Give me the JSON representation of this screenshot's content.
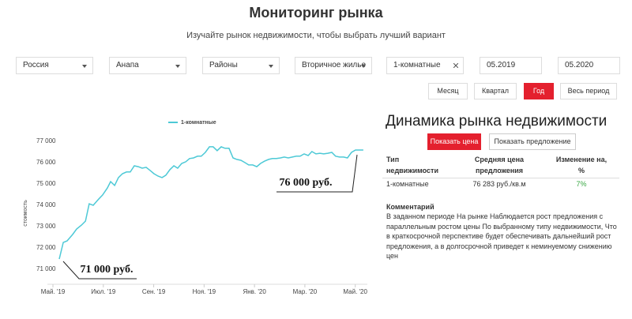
{
  "header": {
    "title": "Мониторинг рынка",
    "subtitle": "Изучайте рынок недвижимости, чтобы выбрать лучший вариант"
  },
  "filters": [
    "Россия",
    "Анапа",
    "Районы",
    "Вторичное жилье",
    "1-комнатные",
    "05.2019",
    "05.2020"
  ],
  "periods": [
    "Месяц",
    "Квартал",
    "Год",
    "Весь период"
  ],
  "chart_data": {
    "type": "line",
    "y_label": "стоимость",
    "x": [
      0.25,
      0.41,
      0.56,
      0.78,
      0.94,
      1.13,
      1.29,
      1.44,
      1.6,
      1.79,
      1.97,
      2.16,
      2.29,
      2.45,
      2.6,
      2.76,
      2.92,
      3.07,
      3.23,
      3.39,
      3.54,
      3.7,
      3.86,
      4.01,
      4.17,
      4.33,
      4.48,
      4.64,
      4.8,
      4.95,
      5.11,
      5.27,
      5.42,
      5.58,
      5.74,
      5.89,
      6.05,
      6.21,
      6.36,
      6.52,
      6.68,
      6.83,
      6.99,
      7.15,
      7.3,
      7.46,
      7.62,
      7.77,
      7.93,
      8.09,
      8.24,
      8.4,
      8.56,
      8.71,
      8.87,
      9.03,
      9.18,
      9.34,
      9.5,
      9.66,
      9.81,
      9.97,
      10.13,
      10.28,
      10.44,
      10.6,
      10.75,
      10.91,
      11.07,
      11.22,
      11.38,
      11.54,
      11.69,
      11.85,
      12.01,
      12.16,
      12.32
    ],
    "series": [
      {
        "name": "1-комнатные",
        "color": "#4dc9d6",
        "values": [
          71480,
          72260,
          72330,
          72630,
          72890,
          73070,
          73260,
          74070,
          74000,
          74260,
          74480,
          74810,
          75110,
          74930,
          75300,
          75480,
          75560,
          75560,
          75850,
          75810,
          75740,
          75780,
          75630,
          75480,
          75370,
          75300,
          75410,
          75670,
          75850,
          75740,
          75960,
          76040,
          76190,
          76220,
          76300,
          76300,
          76480,
          76740,
          76740,
          76560,
          76740,
          76670,
          76670,
          76220,
          76150,
          76110,
          76000,
          75890,
          75890,
          75810,
          75960,
          76070,
          76150,
          76190,
          76190,
          76220,
          76260,
          76220,
          76260,
          76300,
          76300,
          76410,
          76330,
          76520,
          76410,
          76440,
          76410,
          76440,
          76480,
          76300,
          76260,
          76260,
          76220,
          76480,
          76590,
          76590,
          76590
        ]
      }
    ],
    "xlim": [
      -0.22,
      12.48
    ],
    "xticks": [
      {
        "value": 0,
        "label": "Май. '19"
      },
      {
        "value": 2,
        "label": "Июл. '19"
      },
      {
        "value": 4,
        "label": "Сен. '19"
      },
      {
        "value": 6,
        "label": "Ноя. '19"
      },
      {
        "value": 8,
        "label": "Янв. '20"
      },
      {
        "value": 10,
        "label": "Мар. '20"
      },
      {
        "value": 12,
        "label": "Май. '20"
      }
    ],
    "ylim": [
      70300,
      77330
    ],
    "yticks": [
      {
        "value": 71000,
        "label": "71 000"
      },
      {
        "value": 72000,
        "label": "72 000"
      },
      {
        "value": 73000,
        "label": "73 000"
      },
      {
        "value": 74000,
        "label": "74 000"
      },
      {
        "value": 75000,
        "label": "75 000"
      },
      {
        "value": 76000,
        "label": "76 000"
      },
      {
        "value": 77000,
        "label": "77 000"
      }
    ],
    "grid": false,
    "annotations": [
      "71 000 руб.",
      "76 000 руб."
    ]
  },
  "panel": {
    "title": "Динамика рынка недвижимости",
    "buttons": [
      "Показать цена",
      "Показать предложение"
    ],
    "table": {
      "headers": [
        "Тип недвижимости",
        "Средняя цена предложения",
        "Изменение на, %"
      ],
      "rows": [
        [
          "1-комнатные",
          "76 283 руб./кв.м",
          "7%"
        ]
      ]
    },
    "comment_title": "Комментарий",
    "comment": "В заданном периоде На рынке Наблюдается рост предложения с параллельным ростом цены По выбранному типу недвижимости, Что в краткосрочной перспективе будет обеспечивать дальнейший рост предложения, а в долгосрочной приведет к неминуемому снижению цен"
  }
}
